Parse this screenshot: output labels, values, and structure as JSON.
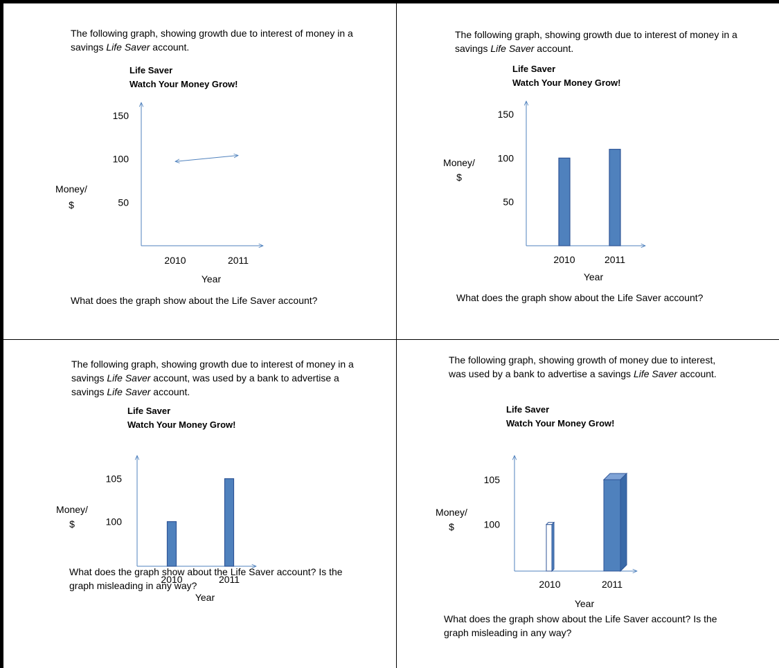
{
  "panels": [
    {
      "intro_before": "The following graph, showing growth due to interest of money in a savings ",
      "intro_italic": "Life Saver",
      "intro_after": " account.",
      "intro_italic2": "",
      "intro_after2": "",
      "title_line1": "Life Saver",
      "title_line2": "Watch Your Money Grow!",
      "question": "What does the graph show about the Life Saver account?"
    },
    {
      "intro_before": "The following graph, showing growth due to interest of money in a savings ",
      "intro_italic": "Life Saver",
      "intro_after": " account.",
      "intro_italic2": "",
      "intro_after2": "",
      "title_line1": "Life Saver",
      "title_line2": "Watch Your Money Grow!",
      "question": "What does the graph show about the Life Saver account?"
    },
    {
      "intro_before": "The following graph, showing growth due to interest of money in a savings ",
      "intro_italic": "Life Saver",
      "intro_after": " account, was used by a bank to advertise a savings ",
      "intro_italic2": "Life Saver",
      "intro_after2": " account.",
      "title_line1": "Life Saver",
      "title_line2": "Watch Your Money Grow!",
      "question": "What does the graph show about the Life Saver account? Is the graph misleading in any way?"
    },
    {
      "intro_before": "The following graph, showing growth of money due to interest, was used by a bank to advertise a savings ",
      "intro_italic": "Life Saver",
      "intro_after": " account.",
      "intro_italic2": "",
      "intro_after2": "",
      "title_line1": "Life Saver",
      "title_line2": "Watch Your Money Grow!",
      "question": "What does the graph show about the Life Saver account? Is the graph misleading in any way?"
    }
  ],
  "chart_data": [
    {
      "type": "line",
      "title": "Life Saver Watch Your Money Grow!",
      "xlabel": "Year",
      "ylabel_line1": "Money/",
      "ylabel_line2": "$",
      "categories": [
        "2010",
        "2011"
      ],
      "y_ticks": [
        "150",
        "100",
        "50"
      ],
      "y_tick_values": [
        150,
        100,
        50
      ],
      "ylim": [
        0,
        165
      ],
      "values": [
        97,
        104
      ],
      "color": "#4f81bd"
    },
    {
      "type": "bar",
      "title": "Life Saver Watch Your Money Grow!",
      "xlabel": "Year",
      "ylabel_line1": "Money/",
      "ylabel_line2": "$",
      "categories": [
        "2010",
        "2011"
      ],
      "y_ticks": [
        "150",
        "100",
        "50"
      ],
      "y_tick_values": [
        150,
        100,
        50
      ],
      "ylim": [
        0,
        165
      ],
      "values": [
        100,
        110
      ],
      "color": "#4f81bd"
    },
    {
      "type": "bar",
      "title": "Life Saver Watch Your Money Grow!",
      "xlabel": "Year",
      "ylabel_line1": "Money/",
      "ylabel_line2": "$",
      "categories": [
        "2010",
        "2011"
      ],
      "y_ticks": [
        "105",
        "100"
      ],
      "y_tick_values": [
        105,
        100
      ],
      "ylim": [
        94.8,
        107.7
      ],
      "values": [
        100,
        105
      ],
      "color": "#4f81bd"
    },
    {
      "type": "bar",
      "title": "Life Saver Watch Your Money Grow!",
      "xlabel": "Year",
      "ylabel_line1": "Money/",
      "ylabel_line2": "$",
      "categories": [
        "2010",
        "2011"
      ],
      "y_ticks": [
        "105",
        "100"
      ],
      "y_tick_values": [
        105,
        100
      ],
      "ylim": [
        94.8,
        107.7
      ],
      "values": [
        100,
        105
      ],
      "style_3d": true,
      "color": "#4f81bd"
    }
  ]
}
